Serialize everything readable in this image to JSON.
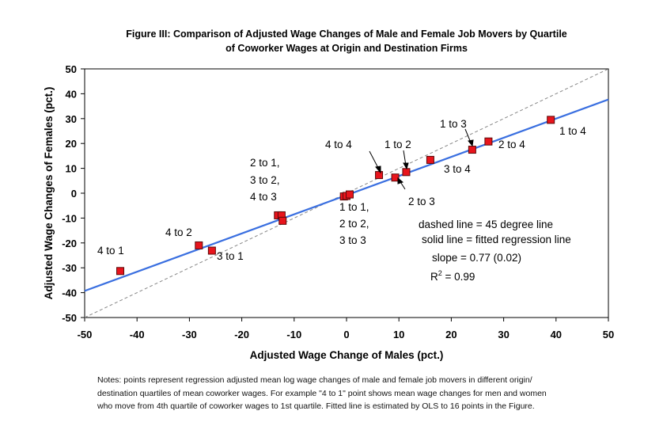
{
  "chart_data": {
    "type": "scatter",
    "title_lines": [
      "Figure III: Comparison of Adjusted Wage Changes of Male and Female Job Movers by Quartile",
      "of Coworker Wages at Origin and Destination Firms"
    ],
    "xlabel": "Adjusted Wage Change of Males (pct.)",
    "ylabel": "Adjusted Wage Changes of Females (pct.)",
    "xlim": [
      -50,
      50
    ],
    "ylim": [
      -50,
      50
    ],
    "xticks": [
      "-50",
      "-40",
      "-30",
      "-20",
      "-10",
      "0",
      "10",
      "20",
      "30",
      "40",
      "50"
    ],
    "yticks": [
      "50",
      "40",
      "30",
      "20",
      "10",
      "0",
      "-10",
      "-20",
      "-30",
      "-40",
      "-50"
    ],
    "grid": false,
    "points": [
      {
        "x": -43.2,
        "y": -31.3
      },
      {
        "x": -28.2,
        "y": -21.0
      },
      {
        "x": -25.7,
        "y": -23.1
      },
      {
        "x": -13.1,
        "y": -8.9
      },
      {
        "x": -12.4,
        "y": -8.9
      },
      {
        "x": -12.2,
        "y": -11.1
      },
      {
        "x": -0.5,
        "y": -1.3
      },
      {
        "x": 0.0,
        "y": -1.1
      },
      {
        "x": 0.6,
        "y": -0.5
      },
      {
        "x": 6.2,
        "y": 7.3
      },
      {
        "x": 9.3,
        "y": 6.3
      },
      {
        "x": 11.4,
        "y": 8.5
      },
      {
        "x": 16.0,
        "y": 13.4
      },
      {
        "x": 24.0,
        "y": 17.5
      },
      {
        "x": 27.1,
        "y": 20.8
      },
      {
        "x": 39.0,
        "y": 29.5
      }
    ],
    "point_labels": [
      {
        "text": "4 to 1"
      },
      {
        "text": "4 to 2"
      },
      {
        "text": "3 to 1"
      },
      {
        "text": "2 to 1,"
      },
      {
        "text": "3 to 2,"
      },
      {
        "text": "4 to 3"
      },
      {
        "text": "1 to 1,"
      },
      {
        "text": "2 to 2,"
      },
      {
        "text": "3 to 3"
      },
      {
        "text": "4 to 4"
      },
      {
        "text": "1 to 2"
      },
      {
        "text": "2 to 3"
      },
      {
        "text": "3 to 4"
      },
      {
        "text": "1 to 3"
      },
      {
        "text": "2 to 4"
      },
      {
        "text": "1 to 4"
      }
    ],
    "fitted_line": {
      "slope": 0.77,
      "intercept": -0.8
    },
    "reference_line": {
      "slope": 1,
      "intercept": 0
    },
    "annotations": [
      "dashed line = 45 degree line",
      "solid line = fitted regression line",
      "slope = 0.77 (0.02)",
      "R",
      "2",
      " = 0.99"
    ],
    "colors": {
      "marker_fill": "#e8141c",
      "marker_edge": "#5a0a0a",
      "fitted_line": "#3a6fe0",
      "dashed_line": "#8a8a8a",
      "axes": "#000000"
    }
  },
  "notes": {
    "lines": [
      "Notes: points represent regression adjusted mean log wage changes of male and female job movers in different  origin/",
      "destination quartiles of mean coworker wages.  For example \"4 to 1\" point shows mean wage changes for men and women",
      "who move from 4th quartile of coworker wages to 1st quartile. Fitted line is estimated by OLS to 16 points in the Figure."
    ]
  }
}
